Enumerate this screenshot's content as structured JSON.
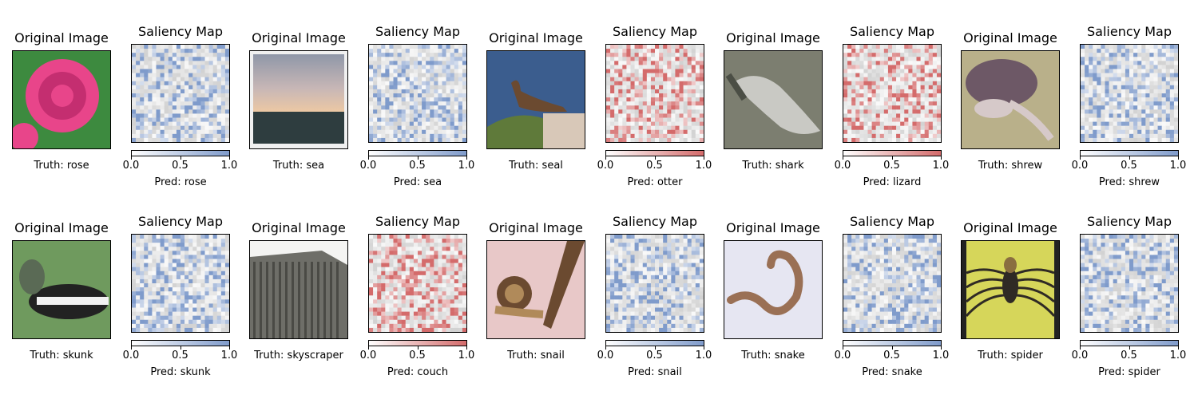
{
  "chart_data": {
    "type": "image-grid",
    "titles": {
      "original": "Original Image",
      "saliency": "Saliency Map"
    },
    "colorbar_ticks": [
      "0.0",
      "0.5",
      "1.0"
    ],
    "colorbar_range": [
      0,
      1
    ],
    "samples": [
      {
        "truth": "Truth: rose",
        "pred": "Pred: rose",
        "correct": true,
        "image_subject": "rose",
        "image_colors": {
          "bg": "#3d8a3f",
          "fg": "#e8458a",
          "accent": "#c42e70"
        }
      },
      {
        "truth": "Truth: sea",
        "pred": "Pred: sea",
        "correct": true,
        "image_subject": "sea",
        "image_colors": {
          "bg": "#c8b7b6",
          "fg": "#2e3d3f",
          "accent": "#ecc8a4"
        }
      },
      {
        "truth": "Truth: seal",
        "pred": "Pred: otter",
        "correct": false,
        "image_subject": "seal",
        "image_colors": {
          "bg": "#3b5d8e",
          "fg": "#6b4a30",
          "accent": "#5f7a3a"
        }
      },
      {
        "truth": "Truth: shark",
        "pred": "Pred: lizard",
        "correct": false,
        "image_subject": "shark",
        "image_colors": {
          "bg": "#7c7e70",
          "fg": "#c9c9c4",
          "accent": "#4b4e45"
        }
      },
      {
        "truth": "Truth: shrew",
        "pred": "Pred: shrew",
        "correct": true,
        "image_subject": "shrew",
        "image_colors": {
          "bg": "#b9b08a",
          "fg": "#6d5866",
          "accent": "#d6c9c9"
        }
      },
      {
        "truth": "Truth: skunk",
        "pred": "Pred: skunk",
        "correct": true,
        "image_subject": "skunk",
        "image_colors": {
          "bg": "#6f9a5e",
          "fg": "#222222",
          "accent": "#f2f2f2"
        }
      },
      {
        "truth": "Truth: skyscraper",
        "pred": "Pred: couch",
        "correct": false,
        "image_subject": "skyscraper",
        "image_colors": {
          "bg": "#f4f4f2",
          "fg": "#4a4a45",
          "accent": "#6e6e68"
        }
      },
      {
        "truth": "Truth: snail",
        "pred": "Pred: snail",
        "correct": true,
        "image_subject": "snail",
        "image_colors": {
          "bg": "#e8c8c8",
          "fg": "#6b4a30",
          "accent": "#b08a5a"
        }
      },
      {
        "truth": "Truth: snake",
        "pred": "Pred: snake",
        "correct": true,
        "image_subject": "snake",
        "image_colors": {
          "bg": "#e6e6f2",
          "fg": "#9a7055",
          "accent": "#c8a080"
        }
      },
      {
        "truth": "Truth: spider",
        "pred": "Pred: spider",
        "correct": true,
        "image_subject": "spider",
        "image_colors": {
          "bg": "#d6d65a",
          "fg": "#2f2a25",
          "accent": "#8a6e40"
        }
      }
    ],
    "saliency_colormaps": {
      "correct": [
        "#ffffff",
        "#7f9bcb"
      ],
      "incorrect": [
        "#ffffff",
        "#d46b6b"
      ]
    }
  }
}
